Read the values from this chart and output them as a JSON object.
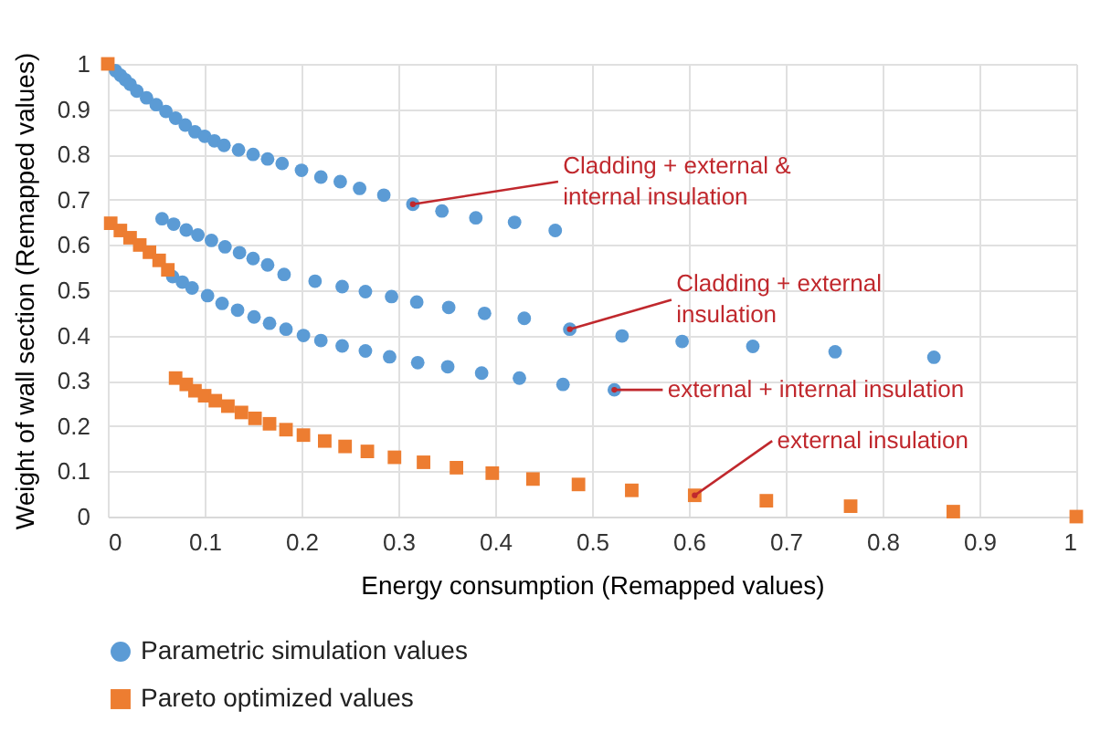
{
  "chart_data": {
    "type": "scatter",
    "xlabel": "Energy consumption (Remapped values)",
    "ylabel": "Weight of wall  section (Remapped values)",
    "xlim": [
      0,
      1
    ],
    "ylim": [
      0,
      1
    ],
    "xticks": [
      0,
      0.1,
      0.2,
      0.3,
      0.4,
      0.5,
      0.6,
      0.7,
      0.8,
      0.9,
      1
    ],
    "yticks": [
      0,
      0.1,
      0.2,
      0.3,
      0.4,
      0.5,
      0.6,
      0.7,
      0.8,
      0.9,
      1
    ],
    "grid": true,
    "legend": "bottom",
    "series": [
      {
        "name": "Parametric simulation values",
        "color": "#5b9bd5",
        "marker": "circle",
        "x": [
          0.008,
          0.013,
          0.018,
          0.023,
          0.03,
          0.04,
          0.05,
          0.06,
          0.07,
          0.08,
          0.09,
          0.1,
          0.11,
          0.12,
          0.135,
          0.15,
          0.165,
          0.18,
          0.2,
          0.22,
          0.24,
          0.26,
          0.285,
          0.315,
          0.345,
          0.38,
          0.42,
          0.462,
          0.056,
          0.068,
          0.081,
          0.093,
          0.107,
          0.121,
          0.136,
          0.15,
          0.165,
          0.182,
          0.214,
          0.242,
          0.266,
          0.293,
          0.319,
          0.352,
          0.389,
          0.43,
          0.477,
          0.531,
          0.593,
          0.666,
          0.751,
          0.853,
          0.067,
          0.077,
          0.087,
          0.103,
          0.118,
          0.134,
          0.151,
          0.167,
          0.184,
          0.202,
          0.22,
          0.242,
          0.266,
          0.291,
          0.32,
          0.351,
          0.386,
          0.425,
          0.47,
          0.523
        ],
        "values": [
          0.985,
          0.975,
          0.965,
          0.955,
          0.94,
          0.925,
          0.91,
          0.895,
          0.88,
          0.865,
          0.85,
          0.84,
          0.83,
          0.82,
          0.81,
          0.8,
          0.79,
          0.78,
          0.765,
          0.75,
          0.74,
          0.725,
          0.71,
          0.69,
          0.675,
          0.66,
          0.65,
          0.632,
          0.658,
          0.646,
          0.633,
          0.622,
          0.61,
          0.596,
          0.583,
          0.57,
          0.556,
          0.535,
          0.52,
          0.508,
          0.497,
          0.486,
          0.474,
          0.462,
          0.449,
          0.438,
          0.414,
          0.399,
          0.387,
          0.376,
          0.364,
          0.352,
          0.53,
          0.518,
          0.505,
          0.488,
          0.471,
          0.456,
          0.441,
          0.427,
          0.414,
          0.4,
          0.389,
          0.377,
          0.366,
          0.353,
          0.34,
          0.331,
          0.317,
          0.306,
          0.292,
          0.28
        ]
      },
      {
        "name": "Pareto optimized values",
        "color": "#ed7d31",
        "marker": "square",
        "x": [
          0.0,
          0.003,
          0.013,
          0.023,
          0.033,
          0.043,
          0.053,
          0.062,
          0.07,
          0.081,
          0.09,
          0.1,
          0.111,
          0.124,
          0.138,
          0.152,
          0.167,
          0.184,
          0.202,
          0.224,
          0.245,
          0.268,
          0.296,
          0.326,
          0.36,
          0.397,
          0.439,
          0.486,
          0.541,
          0.606,
          0.68,
          0.767,
          0.873,
          1.0
        ],
        "values": [
          1.0,
          0.648,
          0.632,
          0.616,
          0.6,
          0.584,
          0.566,
          0.545,
          0.306,
          0.292,
          0.278,
          0.267,
          0.256,
          0.244,
          0.23,
          0.217,
          0.205,
          0.192,
          0.18,
          0.167,
          0.155,
          0.144,
          0.131,
          0.12,
          0.108,
          0.096,
          0.083,
          0.071,
          0.058,
          0.047,
          0.035,
          0.023,
          0.011,
          0.0
        ]
      }
    ],
    "annotations": [
      {
        "text": "Cladding + external &\ninternal insulation",
        "x": 0.315,
        "y": 0.69
      },
      {
        "text": "Cladding + external\ninsulation",
        "x": 0.477,
        "y": 0.414
      },
      {
        "text": "external + internal insulation",
        "x": 0.523,
        "y": 0.28
      },
      {
        "text": "external insulation",
        "x": 0.606,
        "y": 0.047
      }
    ]
  }
}
